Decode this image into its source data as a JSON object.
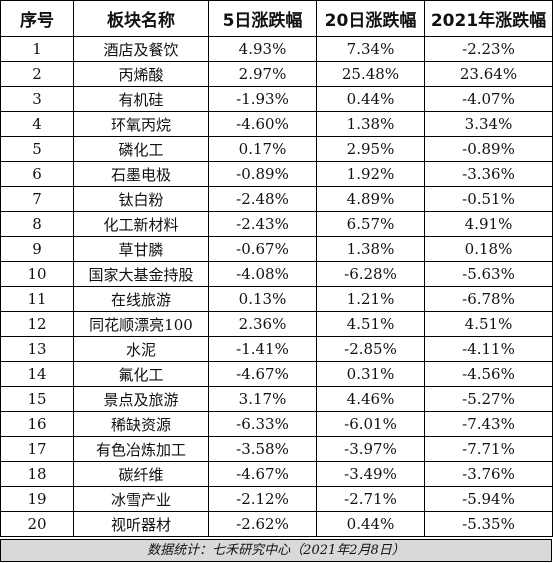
{
  "table": {
    "headers": [
      "序号",
      "板块名称",
      "5日涨跌幅",
      "20日涨跌幅",
      "2021年涨跌幅"
    ],
    "rows": [
      [
        "1",
        "酒店及餐饮",
        "4.93%",
        "7.34%",
        "-2.23%"
      ],
      [
        "2",
        "丙烯酸",
        "2.97%",
        "25.48%",
        "23.64%"
      ],
      [
        "3",
        "有机硅",
        "-1.93%",
        "0.44%",
        "-4.07%"
      ],
      [
        "4",
        "环氧丙烷",
        "-4.60%",
        "1.38%",
        "3.34%"
      ],
      [
        "5",
        "磷化工",
        "0.17%",
        "2.95%",
        "-0.89%"
      ],
      [
        "6",
        "石墨电极",
        "-0.89%",
        "1.92%",
        "-3.36%"
      ],
      [
        "7",
        "钛白粉",
        "-2.48%",
        "4.89%",
        "-0.51%"
      ],
      [
        "8",
        "化工新材料",
        "-2.43%",
        "6.57%",
        "4.91%"
      ],
      [
        "9",
        "草甘膦",
        "-0.67%",
        "1.38%",
        "0.18%"
      ],
      [
        "10",
        "国家大基金持股",
        "-4.08%",
        "-6.28%",
        "-5.63%"
      ],
      [
        "11",
        "在线旅游",
        "0.13%",
        "1.21%",
        "-6.78%"
      ],
      [
        "12",
        "同花顺漂亮100",
        "2.36%",
        "4.51%",
        "4.51%"
      ],
      [
        "13",
        "水泥",
        "-1.41%",
        "-2.85%",
        "-4.11%"
      ],
      [
        "14",
        "氟化工",
        "-4.67%",
        "0.31%",
        "-4.56%"
      ],
      [
        "15",
        "景点及旅游",
        "3.17%",
        "4.46%",
        "-5.27%"
      ],
      [
        "16",
        "稀缺资源",
        "-6.33%",
        "-6.01%",
        "-7.43%"
      ],
      [
        "17",
        "有色冶炼加工",
        "-3.58%",
        "-3.97%",
        "-7.71%"
      ],
      [
        "18",
        "碳纤维",
        "-4.67%",
        "-3.49%",
        "-3.76%"
      ],
      [
        "19",
        "冰雪产业",
        "-2.12%",
        "-2.71%",
        "-5.94%"
      ],
      [
        "20",
        "视听器材",
        "-2.62%",
        "0.44%",
        "-5.35%"
      ]
    ]
  },
  "footer": {
    "text": "数据统计：七禾研究中心（2021年2月8日）"
  },
  "style": {
    "header_bg": "#ffffff",
    "footer_bg": "#d9d9d9",
    "border_color": "#000000"
  }
}
